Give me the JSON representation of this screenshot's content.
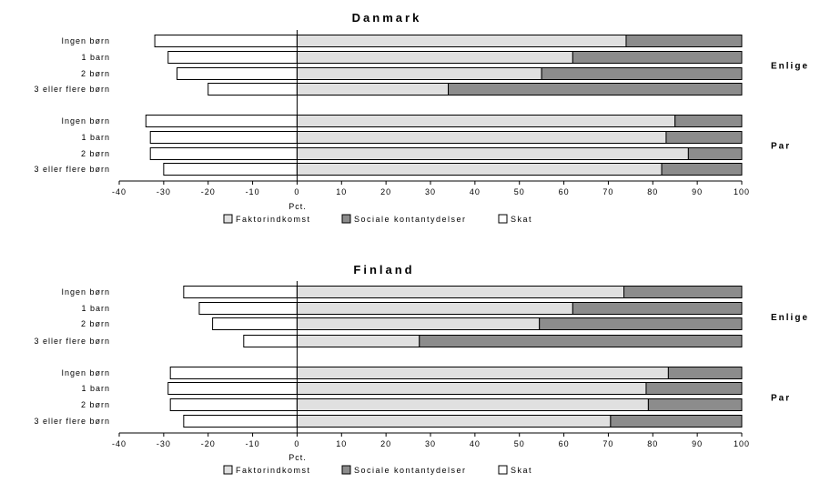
{
  "colors": {
    "faktor": "#e0e0e0",
    "sociale": "#8c8c8c",
    "skat": "#ffffff",
    "stroke": "#000000"
  },
  "chart_data": [
    {
      "type": "bar",
      "orientation": "horizontal",
      "stacked": true,
      "title": "Danmark",
      "xlabel": "Pct.",
      "xlim": [
        -40,
        100
      ],
      "xticks": [
        -40,
        -30,
        -20,
        -10,
        0,
        10,
        20,
        30,
        40,
        50,
        60,
        70,
        80,
        90,
        100
      ],
      "groups": [
        {
          "label": "Enlige",
          "categories": [
            "Ingen børn",
            "1 barn",
            "2 børn",
            "3 eller flere børn"
          ]
        },
        {
          "label": "Par",
          "categories": [
            "Ingen børn",
            "1 barn",
            "2 børn",
            "3 eller flere børn"
          ]
        }
      ],
      "categories": [
        "Ingen børn",
        "1 barn",
        "2 børn",
        "3 eller flere børn",
        "Ingen børn",
        "1 barn",
        "2 børn",
        "3 eller flere børn"
      ],
      "series": [
        {
          "name": "Faktorindkomst",
          "values": [
            74,
            62,
            55,
            34,
            85,
            83,
            88,
            82
          ]
        },
        {
          "name": "Sociale kontantydelser",
          "values": [
            26,
            38,
            45,
            66,
            15,
            17,
            12,
            18
          ]
        },
        {
          "name": "Skat",
          "values": [
            -32,
            -29,
            -27,
            -20,
            -34,
            -33,
            -33,
            -30
          ]
        }
      ],
      "legend": [
        "Faktorindkomst",
        "Sociale kontantydelser",
        "Skat"
      ],
      "legend_position": "bottom"
    },
    {
      "type": "bar",
      "orientation": "horizontal",
      "stacked": true,
      "title": "Finland",
      "xlabel": "Pct.",
      "xlim": [
        -40,
        100
      ],
      "xticks": [
        -40,
        -30,
        -20,
        -10,
        0,
        10,
        20,
        30,
        40,
        50,
        60,
        70,
        80,
        90,
        100
      ],
      "groups": [
        {
          "label": "Enlige",
          "categories": [
            "Ingen børn",
            "1 barn",
            "2 børn",
            "3 eller flere børn"
          ]
        },
        {
          "label": "Par",
          "categories": [
            "Ingen børn",
            "1 barn",
            "2 børn",
            "3 eller flere børn"
          ]
        }
      ],
      "categories": [
        "Ingen børn",
        "1 barn",
        "2 børn",
        "3 eller flere børn",
        "Ingen børn",
        "1 barn",
        "2 børn",
        "3 eller flere børn"
      ],
      "series": [
        {
          "name": "Faktorindkomst",
          "values": [
            73.5,
            62,
            54.5,
            27.5,
            83.5,
            78.5,
            79,
            70.5
          ]
        },
        {
          "name": "Sociale kontantydelser",
          "values": [
            26.5,
            38,
            45.5,
            72.5,
            16.5,
            21.5,
            21,
            29.5
          ]
        },
        {
          "name": "Skat",
          "values": [
            -25.5,
            -22,
            -19,
            -12,
            -28.5,
            -29,
            -28.5,
            -25.5
          ]
        }
      ],
      "legend": [
        "Faktorindkomst",
        "Sociale kontantydelser",
        "Skat"
      ],
      "legend_position": "bottom"
    }
  ]
}
